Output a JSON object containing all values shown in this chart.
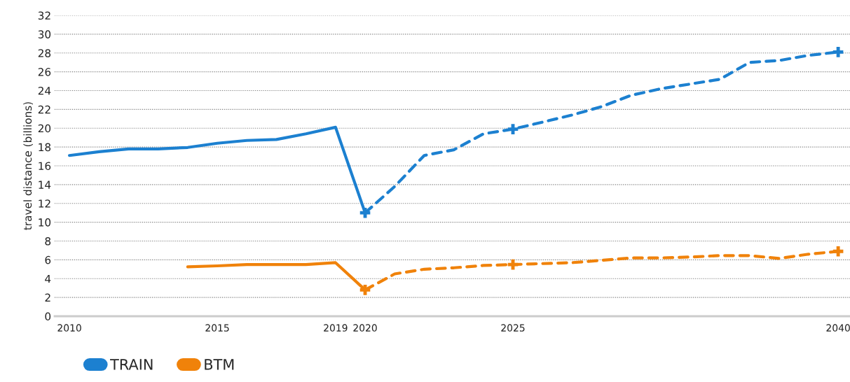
{
  "chart_data": {
    "type": "line",
    "categories": [
      "2010",
      null,
      null,
      null,
      null,
      "2015",
      null,
      null,
      null,
      "2019",
      "2020",
      null,
      null,
      null,
      null,
      "2025",
      null,
      null,
      null,
      null,
      null,
      null,
      null,
      null,
      null,
      null,
      "2040"
    ],
    "ylabel": "travel distance (billions)",
    "ylim": [
      0,
      32
    ],
    "yticks": [
      0,
      2,
      4,
      6,
      8,
      10,
      12,
      14,
      16,
      18,
      20,
      22,
      24,
      26,
      28,
      30,
      32
    ],
    "grid": "y",
    "legend": "bottom left",
    "series": [
      {
        "name": "TRAIN",
        "color": "#1c80d0",
        "line_style": "solid",
        "values": [
          17.1,
          17.5,
          17.8,
          17.8,
          17.95,
          18.4,
          18.7,
          18.8,
          19.4,
          20.1,
          11.0,
          null,
          null,
          null,
          null,
          null,
          null,
          null,
          null,
          null,
          null,
          null,
          null,
          null,
          null,
          null,
          null
        ]
      },
      {
        "color": "#1c80d0",
        "line_style": "dashed",
        "values": [
          null,
          null,
          null,
          null,
          null,
          null,
          null,
          null,
          null,
          null,
          11.0,
          13.8,
          17.1,
          17.7,
          19.4,
          19.9,
          20.65,
          21.4,
          22.3,
          23.5,
          24.2,
          24.7,
          25.2,
          27.0,
          27.2,
          27.75,
          28.1
        ]
      },
      {
        "name": "BTM",
        "color": "#f0820a",
        "line_style": "solid",
        "values": [
          null,
          null,
          null,
          null,
          5.25,
          5.36,
          5.5,
          5.5,
          5.5,
          5.7,
          2.8,
          null,
          null,
          null,
          null,
          null,
          null,
          null,
          null,
          null,
          null,
          null,
          null,
          null,
          null,
          null,
          null
        ]
      },
      {
        "color": "#f0820a",
        "line_style": "dashed",
        "values": [
          null,
          null,
          null,
          null,
          null,
          null,
          null,
          null,
          null,
          null,
          2.8,
          4.5,
          5.0,
          5.15,
          5.4,
          5.5,
          5.6,
          5.7,
          5.95,
          6.2,
          6.2,
          6.3,
          6.45,
          6.45,
          6.15,
          6.6,
          6.9
        ]
      },
      {
        "type": "scatter",
        "marker": "cross",
        "color": "#1c80d0",
        "values": [
          null,
          null,
          null,
          null,
          null,
          null,
          null,
          null,
          null,
          null,
          11.0,
          null,
          null,
          null,
          null,
          19.9,
          null,
          null,
          null,
          null,
          null,
          null,
          null,
          null,
          null,
          null,
          28.1
        ]
      },
      {
        "type": "scatter",
        "marker": "cross",
        "color": "#f0820a",
        "values": [
          null,
          null,
          null,
          null,
          null,
          null,
          null,
          null,
          null,
          null,
          2.8,
          null,
          null,
          null,
          null,
          5.5,
          null,
          null,
          null,
          null,
          null,
          null,
          null,
          null,
          null,
          null,
          6.9
        ]
      }
    ]
  }
}
